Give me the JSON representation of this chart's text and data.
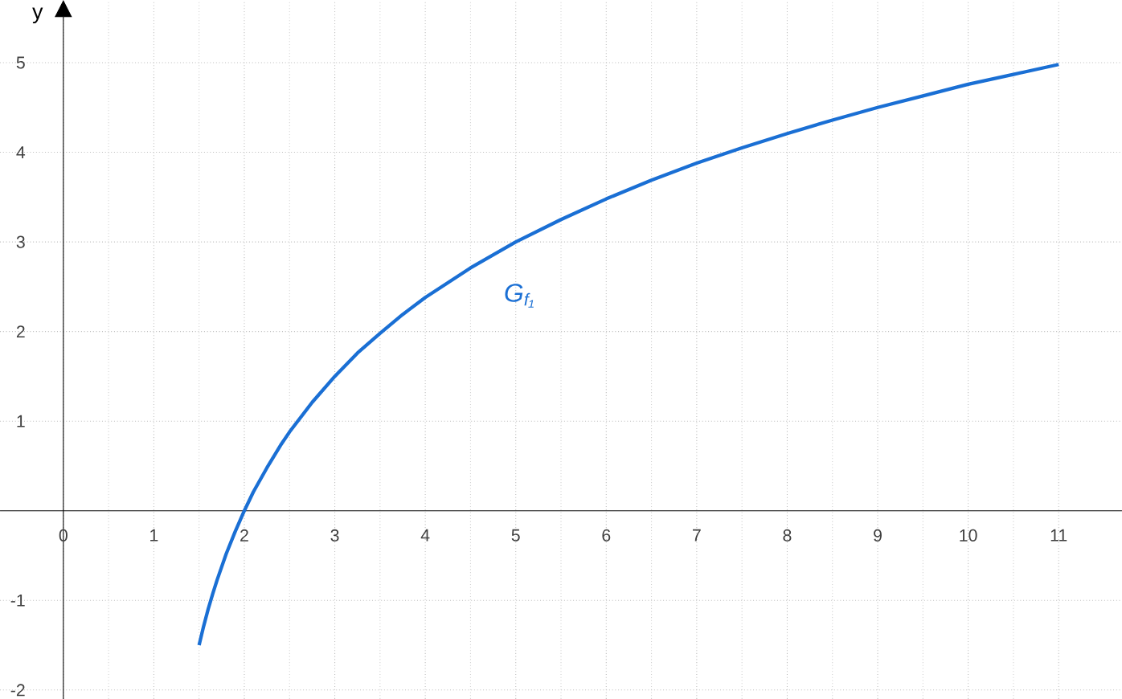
{
  "chart_data": {
    "type": "line",
    "ylabel": "y",
    "x": [
      1.5,
      1.55,
      1.6,
      1.65,
      1.7,
      1.8,
      1.9,
      2,
      2.1,
      2.25,
      2.4,
      2.5,
      2.75,
      3,
      3.25,
      3.5,
      3.75,
      4,
      4.5,
      5,
      5.5,
      6,
      6.5,
      7,
      7.5,
      8,
      8.5,
      9,
      9.5,
      10,
      10.5,
      11
    ],
    "series": [
      {
        "color": "#1a6fd4",
        "values": [
          -1.5,
          -1.29,
          -1.1,
          -0.93,
          -0.77,
          -0.48,
          -0.23,
          0,
          0.21,
          0.48,
          0.73,
          0.88,
          1.21,
          1.5,
          1.76,
          1.98,
          2.19,
          2.38,
          2.71,
          3,
          3.25,
          3.48,
          3.69,
          3.88,
          4.05,
          4.21,
          4.36,
          4.5,
          4.63,
          4.76,
          4.87,
          4.98
        ]
      }
    ],
    "xlim": [
      -0.7,
      11.7
    ],
    "ylim": [
      -2.1,
      5.7
    ],
    "xticks": [
      0,
      1,
      2,
      3,
      4,
      5,
      6,
      7,
      8,
      9,
      10,
      11
    ],
    "yticks": [
      -2,
      -1,
      1,
      2,
      3,
      4,
      5
    ],
    "grid": true,
    "marker": "none",
    "line_style": "solid",
    "annotations": [
      "G$_{f₁}$"
    ]
  }
}
